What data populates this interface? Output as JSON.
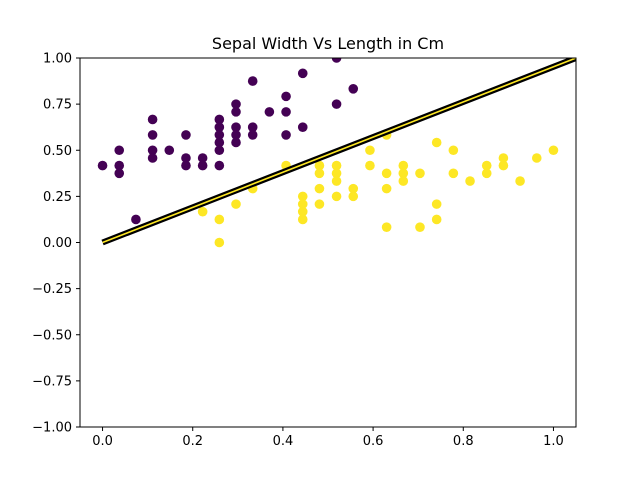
{
  "chart_data": {
    "type": "scatter",
    "title": "Sepal Width Vs Length in Cm",
    "xlabel": "",
    "ylabel": "",
    "xlim": [
      -0.05,
      1.05
    ],
    "ylim": [
      -1.0,
      1.0
    ],
    "xticks": [
      "0.0",
      "0.2",
      "0.4",
      "0.6",
      "0.8",
      "1.0"
    ],
    "yticks": [
      "−1.00",
      "−0.75",
      "−0.50",
      "−0.25",
      "0.00",
      "0.25",
      "0.50",
      "0.75",
      "1.00"
    ],
    "grid": false,
    "series": [
      {
        "color": "#440154",
        "points": [
          [
            0.0,
            0.417
          ],
          [
            0.037,
            0.5
          ],
          [
            0.037,
            0.417
          ],
          [
            0.037,
            0.375
          ],
          [
            0.074,
            0.125
          ],
          [
            0.111,
            0.667
          ],
          [
            0.111,
            0.583
          ],
          [
            0.111,
            0.5
          ],
          [
            0.111,
            0.458
          ],
          [
            0.148,
            0.5
          ],
          [
            0.185,
            0.583
          ],
          [
            0.185,
            0.458
          ],
          [
            0.185,
            0.417
          ],
          [
            0.222,
            0.458
          ],
          [
            0.222,
            0.417
          ],
          [
            0.259,
            0.667
          ],
          [
            0.259,
            0.625
          ],
          [
            0.259,
            0.583
          ],
          [
            0.259,
            0.542
          ],
          [
            0.259,
            0.5
          ],
          [
            0.259,
            0.417
          ],
          [
            0.296,
            0.75
          ],
          [
            0.296,
            0.708
          ],
          [
            0.296,
            0.625
          ],
          [
            0.296,
            0.583
          ],
          [
            0.296,
            0.542
          ],
          [
            0.333,
            0.875
          ],
          [
            0.333,
            0.625
          ],
          [
            0.333,
            0.583
          ],
          [
            0.37,
            0.708
          ],
          [
            0.407,
            0.792
          ],
          [
            0.407,
            0.708
          ],
          [
            0.407,
            0.583
          ],
          [
            0.444,
            0.917
          ],
          [
            0.444,
            0.625
          ],
          [
            0.519,
            1.0
          ],
          [
            0.519,
            0.75
          ],
          [
            0.556,
            0.833
          ]
        ]
      },
      {
        "color": "#fde725",
        "points": [
          [
            0.222,
            0.167
          ],
          [
            0.259,
            0.125
          ],
          [
            0.259,
            0.0
          ],
          [
            0.296,
            0.208
          ],
          [
            0.333,
            0.292
          ],
          [
            0.407,
            0.417
          ],
          [
            0.444,
            0.25
          ],
          [
            0.444,
            0.208
          ],
          [
            0.444,
            0.167
          ],
          [
            0.444,
            0.125
          ],
          [
            0.481,
            0.417
          ],
          [
            0.481,
            0.375
          ],
          [
            0.481,
            0.292
          ],
          [
            0.481,
            0.208
          ],
          [
            0.519,
            0.417
          ],
          [
            0.519,
            0.375
          ],
          [
            0.519,
            0.333
          ],
          [
            0.519,
            0.25
          ],
          [
            0.556,
            0.292
          ],
          [
            0.556,
            0.25
          ],
          [
            0.593,
            0.5
          ],
          [
            0.593,
            0.417
          ],
          [
            0.63,
            0.583
          ],
          [
            0.63,
            0.375
          ],
          [
            0.63,
            0.292
          ],
          [
            0.63,
            0.083
          ],
          [
            0.667,
            0.417
          ],
          [
            0.667,
            0.375
          ],
          [
            0.667,
            0.333
          ],
          [
            0.704,
            0.375
          ],
          [
            0.704,
            0.083
          ],
          [
            0.741,
            0.542
          ],
          [
            0.741,
            0.208
          ],
          [
            0.741,
            0.125
          ],
          [
            0.778,
            0.5
          ],
          [
            0.778,
            0.375
          ],
          [
            0.815,
            0.333
          ],
          [
            0.852,
            0.417
          ],
          [
            0.852,
            0.375
          ],
          [
            0.889,
            0.458
          ],
          [
            0.889,
            0.417
          ],
          [
            0.926,
            0.333
          ],
          [
            0.963,
            0.458
          ],
          [
            1.0,
            0.5
          ]
        ]
      }
    ],
    "decision_line": {
      "x": [
        0.0,
        1.05
      ],
      "y": [
        0.0,
        1.0
      ],
      "color": "#000000",
      "highlight_color": "#fde725"
    }
  }
}
